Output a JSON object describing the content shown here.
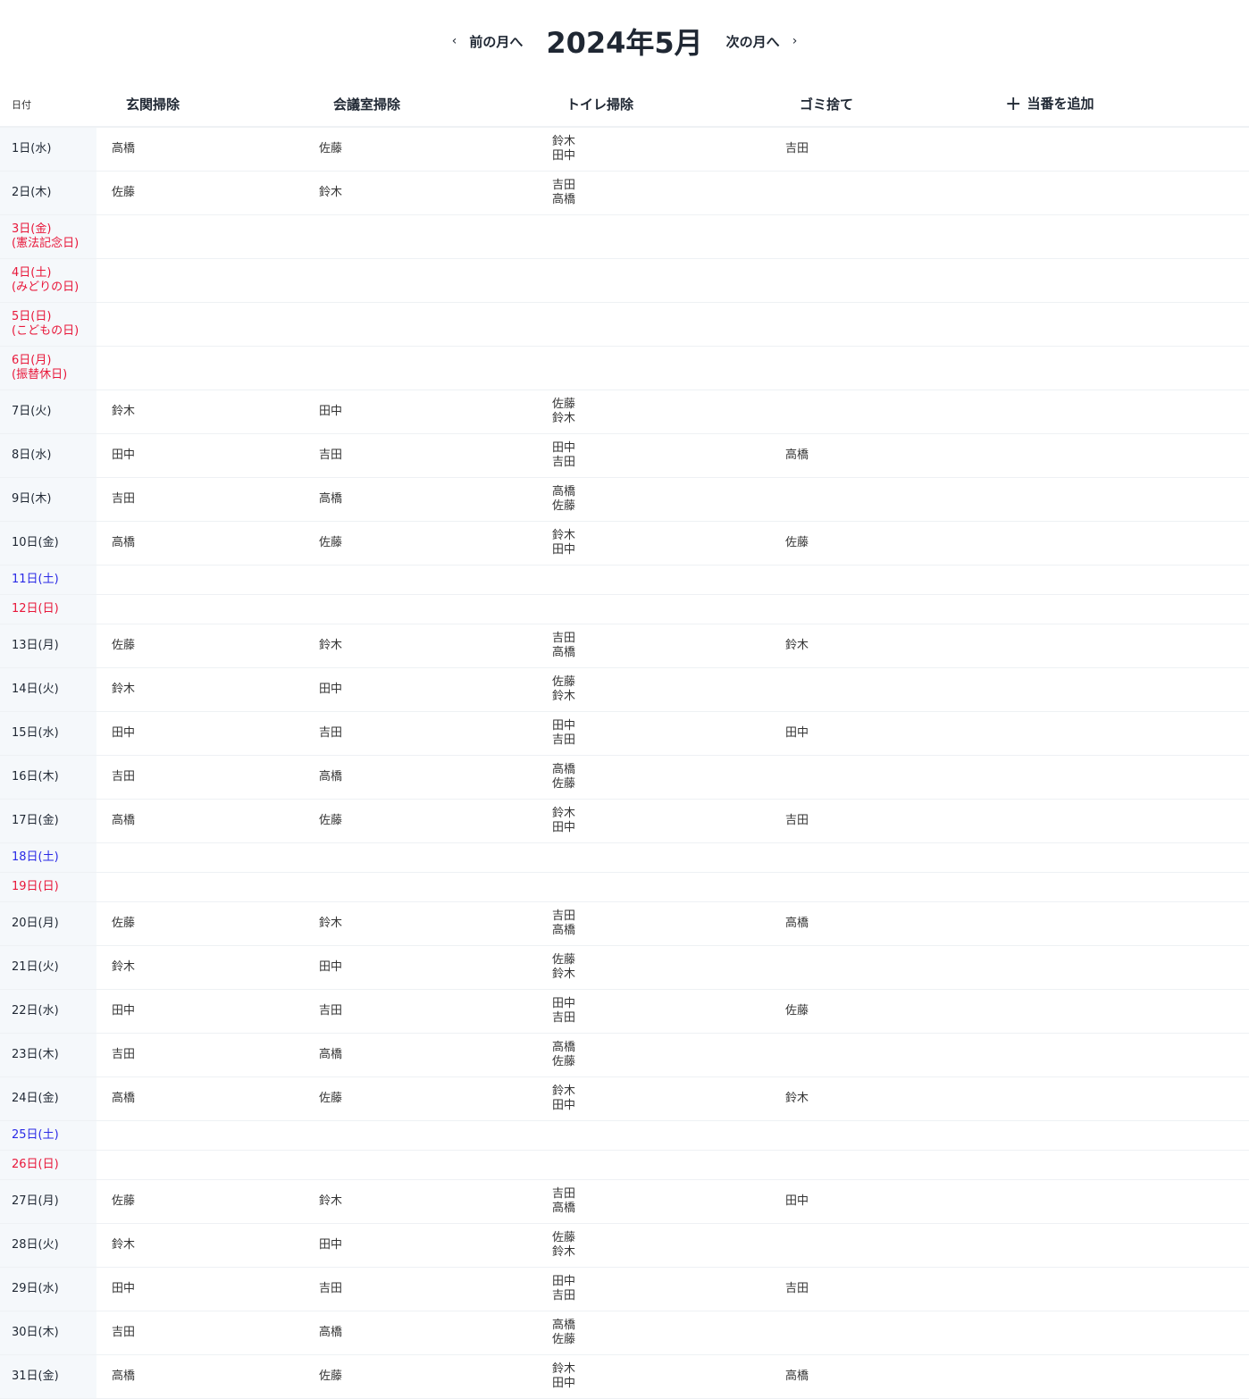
{
  "nav": {
    "prev_label": "前の月へ",
    "next_label": "次の月へ",
    "title": "2024年5月",
    "prev_icon": "chevron-left-icon",
    "next_icon": "chevron-right-icon"
  },
  "colors": {
    "saturday": "#2a2ae6",
    "holiday": "#e8173a",
    "date_bg": "#f5f8fb"
  },
  "table": {
    "date_header": "日付",
    "columns": [
      "玄関掃除",
      "会議室掃除",
      "トイレ掃除",
      "ゴミ捨て"
    ],
    "add_label": "当番を追加",
    "rows": [
      {
        "date": "1日(水)",
        "type": "weekday",
        "cells": [
          [
            "高橋"
          ],
          [
            "佐藤"
          ],
          [
            "鈴木",
            "田中"
          ],
          [
            "吉田"
          ]
        ]
      },
      {
        "date": "2日(木)",
        "type": "weekday",
        "cells": [
          [
            "佐藤"
          ],
          [
            "鈴木"
          ],
          [
            "吉田",
            "高橋"
          ],
          []
        ]
      },
      {
        "date": "3日(金)",
        "holiday": "(憲法記念日)",
        "type": "holiday",
        "cells": []
      },
      {
        "date": "4日(土)",
        "holiday": "(みどりの日)",
        "type": "holiday",
        "cells": []
      },
      {
        "date": "5日(日)",
        "holiday": "(こどもの日)",
        "type": "holiday",
        "cells": []
      },
      {
        "date": "6日(月)",
        "holiday": "(振替休日)",
        "type": "holiday",
        "cells": []
      },
      {
        "date": "7日(火)",
        "type": "weekday",
        "cells": [
          [
            "鈴木"
          ],
          [
            "田中"
          ],
          [
            "佐藤",
            "鈴木"
          ],
          []
        ]
      },
      {
        "date": "8日(水)",
        "type": "weekday",
        "cells": [
          [
            "田中"
          ],
          [
            "吉田"
          ],
          [
            "田中",
            "吉田"
          ],
          [
            "高橋"
          ]
        ]
      },
      {
        "date": "9日(木)",
        "type": "weekday",
        "cells": [
          [
            "吉田"
          ],
          [
            "高橋"
          ],
          [
            "高橋",
            "佐藤"
          ],
          []
        ]
      },
      {
        "date": "10日(金)",
        "type": "weekday",
        "cells": [
          [
            "高橋"
          ],
          [
            "佐藤"
          ],
          [
            "鈴木",
            "田中"
          ],
          [
            "佐藤"
          ]
        ]
      },
      {
        "date": "11日(土)",
        "type": "saturday",
        "cells": []
      },
      {
        "date": "12日(日)",
        "type": "sunday",
        "cells": []
      },
      {
        "date": "13日(月)",
        "type": "weekday",
        "cells": [
          [
            "佐藤"
          ],
          [
            "鈴木"
          ],
          [
            "吉田",
            "高橋"
          ],
          [
            "鈴木"
          ]
        ]
      },
      {
        "date": "14日(火)",
        "type": "weekday",
        "cells": [
          [
            "鈴木"
          ],
          [
            "田中"
          ],
          [
            "佐藤",
            "鈴木"
          ],
          []
        ]
      },
      {
        "date": "15日(水)",
        "type": "weekday",
        "cells": [
          [
            "田中"
          ],
          [
            "吉田"
          ],
          [
            "田中",
            "吉田"
          ],
          [
            "田中"
          ]
        ]
      },
      {
        "date": "16日(木)",
        "type": "weekday",
        "cells": [
          [
            "吉田"
          ],
          [
            "高橋"
          ],
          [
            "高橋",
            "佐藤"
          ],
          []
        ]
      },
      {
        "date": "17日(金)",
        "type": "weekday",
        "cells": [
          [
            "高橋"
          ],
          [
            "佐藤"
          ],
          [
            "鈴木",
            "田中"
          ],
          [
            "吉田"
          ]
        ]
      },
      {
        "date": "18日(土)",
        "type": "saturday",
        "cells": []
      },
      {
        "date": "19日(日)",
        "type": "sunday",
        "cells": []
      },
      {
        "date": "20日(月)",
        "type": "weekday",
        "cells": [
          [
            "佐藤"
          ],
          [
            "鈴木"
          ],
          [
            "吉田",
            "高橋"
          ],
          [
            "高橋"
          ]
        ]
      },
      {
        "date": "21日(火)",
        "type": "weekday",
        "cells": [
          [
            "鈴木"
          ],
          [
            "田中"
          ],
          [
            "佐藤",
            "鈴木"
          ],
          []
        ]
      },
      {
        "date": "22日(水)",
        "type": "weekday",
        "cells": [
          [
            "田中"
          ],
          [
            "吉田"
          ],
          [
            "田中",
            "吉田"
          ],
          [
            "佐藤"
          ]
        ]
      },
      {
        "date": "23日(木)",
        "type": "weekday",
        "cells": [
          [
            "吉田"
          ],
          [
            "高橋"
          ],
          [
            "高橋",
            "佐藤"
          ],
          []
        ]
      },
      {
        "date": "24日(金)",
        "type": "weekday",
        "cells": [
          [
            "高橋"
          ],
          [
            "佐藤"
          ],
          [
            "鈴木",
            "田中"
          ],
          [
            "鈴木"
          ]
        ]
      },
      {
        "date": "25日(土)",
        "type": "saturday",
        "cells": []
      },
      {
        "date": "26日(日)",
        "type": "sunday",
        "cells": []
      },
      {
        "date": "27日(月)",
        "type": "weekday",
        "cells": [
          [
            "佐藤"
          ],
          [
            "鈴木"
          ],
          [
            "吉田",
            "高橋"
          ],
          [
            "田中"
          ]
        ]
      },
      {
        "date": "28日(火)",
        "type": "weekday",
        "cells": [
          [
            "鈴木"
          ],
          [
            "田中"
          ],
          [
            "佐藤",
            "鈴木"
          ],
          []
        ]
      },
      {
        "date": "29日(水)",
        "type": "weekday",
        "cells": [
          [
            "田中"
          ],
          [
            "吉田"
          ],
          [
            "田中",
            "吉田"
          ],
          [
            "吉田"
          ]
        ]
      },
      {
        "date": "30日(木)",
        "type": "weekday",
        "cells": [
          [
            "吉田"
          ],
          [
            "高橋"
          ],
          [
            "高橋",
            "佐藤"
          ],
          []
        ]
      },
      {
        "date": "31日(金)",
        "type": "weekday",
        "cells": [
          [
            "高橋"
          ],
          [
            "佐藤"
          ],
          [
            "鈴木",
            "田中"
          ],
          [
            "高橋"
          ]
        ]
      }
    ]
  }
}
